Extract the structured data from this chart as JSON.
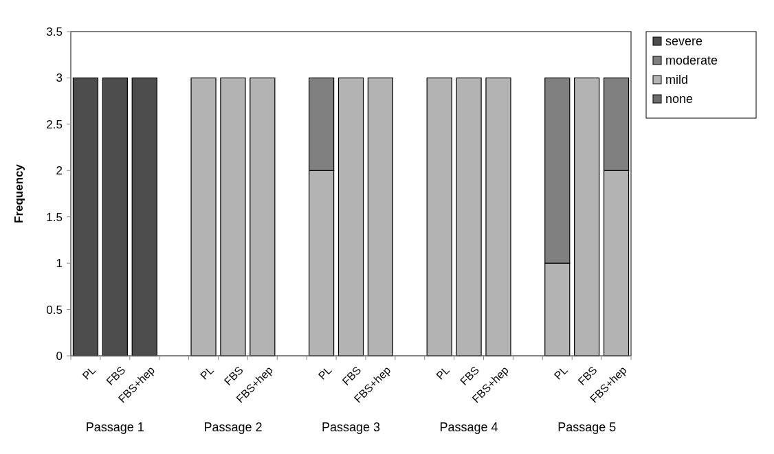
{
  "chart_data": {
    "type": "bar",
    "stacked": true,
    "ylabel": "Frequency",
    "categories": [
      "PL",
      "FBS",
      "FBS+hep",
      null,
      "PL",
      "FBS",
      "FBS+hep",
      null,
      "PL",
      "FBS",
      "FBS+hep",
      null,
      "PL",
      "FBS",
      "FBS+hep",
      null,
      "PL",
      "FBS",
      "FBS+hep"
    ],
    "series": [
      {
        "name": "none",
        "color": "#6e6e6e",
        "values": [
          0,
          0,
          0,
          null,
          0,
          0,
          0,
          null,
          0,
          0,
          0,
          null,
          0,
          0,
          0,
          null,
          0,
          0,
          0
        ]
      },
      {
        "name": "mild",
        "color": "#b3b3b3",
        "values": [
          0,
          0,
          0,
          null,
          3,
          3,
          3,
          null,
          2,
          3,
          3,
          null,
          3,
          3,
          3,
          null,
          1,
          3,
          2
        ]
      },
      {
        "name": "moderate",
        "color": "#808080",
        "values": [
          0,
          0,
          0,
          null,
          0,
          0,
          0,
          null,
          1,
          0,
          0,
          null,
          0,
          0,
          0,
          null,
          2,
          0,
          1
        ]
      },
      {
        "name": "severe",
        "color": "#4d4d4d",
        "values": [
          3,
          3,
          3,
          null,
          0,
          0,
          0,
          null,
          0,
          0,
          0,
          null,
          0,
          0,
          0,
          null,
          0,
          0,
          0
        ]
      }
    ],
    "ylim": [
      0,
      3.5
    ],
    "yticks": [
      0,
      0.5,
      1,
      1.5,
      2,
      2.5,
      3,
      3.5
    ],
    "legend": "top right",
    "annotations": [
      "Passage 1",
      "Passage 2",
      "Passage 3",
      "Passage 4",
      "Passage 5"
    ]
  }
}
